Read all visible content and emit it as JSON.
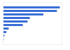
{
  "chart_data": {
    "type": "bar",
    "orientation": "horizontal",
    "categories": [
      null,
      null,
      null,
      null,
      null,
      null,
      null,
      null,
      null,
      null
    ],
    "values": [
      97,
      92,
      69,
      46,
      42,
      34,
      10,
      6,
      3,
      2
    ],
    "colors": [
      "#3a6fd8",
      "#3a6fd8",
      "#3a6fd8",
      "#3a6fd8",
      "#3a6fd8",
      "#3a6fd8",
      "#3a6fd8",
      "#3a6fd8",
      "#6f95e2",
      "#a9bfee"
    ],
    "xlim": [
      0,
      100
    ],
    "grid": false,
    "tick_labels": false
  }
}
